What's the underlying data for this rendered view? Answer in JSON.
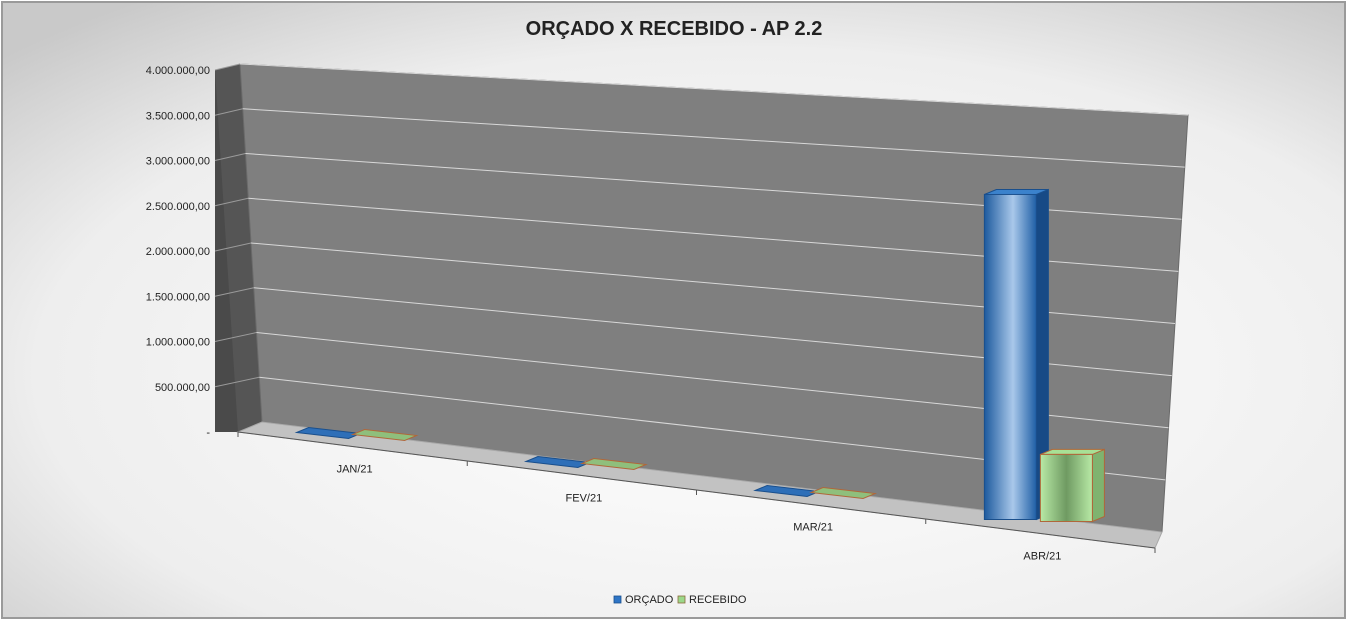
{
  "chart_data": {
    "type": "bar",
    "title": "ORÇADO X RECEBIDO - AP 2.2",
    "categories": [
      "JAN/21",
      "FEV/21",
      "MAR/21",
      "ABR/21"
    ],
    "series": [
      {
        "name": "ORÇADO",
        "values": [
          0,
          0,
          0,
          3150000
        ],
        "color": "#2e75c6"
      },
      {
        "name": "RECEBIDO",
        "values": [
          0,
          0,
          0,
          650000
        ],
        "color": "#9bd88a"
      }
    ],
    "ylim": [
      0,
      4000000
    ],
    "yticks": [
      {
        "value": 0,
        "label": "-"
      },
      {
        "value": 500000,
        "label": "500.000,00"
      },
      {
        "value": 1000000,
        "label": "1.000.000,00"
      },
      {
        "value": 1500000,
        "label": "1.500.000,00"
      },
      {
        "value": 2000000,
        "label": "2.000.000,00"
      },
      {
        "value": 2500000,
        "label": "2.500.000,00"
      },
      {
        "value": 3000000,
        "label": "3.000.000,00"
      },
      {
        "value": 3500000,
        "label": "3.500.000,00"
      },
      {
        "value": 4000000,
        "label": "4.000.000,00"
      }
    ],
    "grid": true,
    "legend_position": "bottom",
    "perspective": "3d"
  }
}
